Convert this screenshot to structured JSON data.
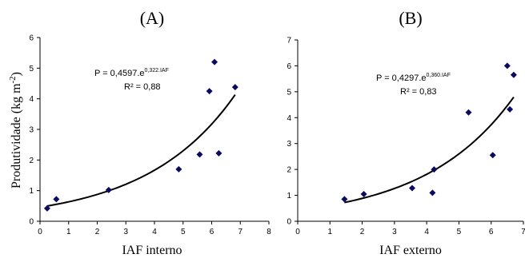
{
  "chart_data": [
    {
      "type": "scatter",
      "title": "(A)",
      "xlabel": "IAF interno",
      "ylabel": "Produtividade (kg m",
      "ylabel_sup": "-2",
      "ylabel_end": ")",
      "xlim": [
        0,
        8
      ],
      "ylim": [
        0,
        6
      ],
      "xticks": [
        0,
        1,
        2,
        3,
        4,
        5,
        6,
        7,
        8
      ],
      "yticks": [
        0,
        1,
        2,
        3,
        4,
        5,
        6
      ],
      "points": [
        {
          "x": 0.25,
          "y": 0.42
        },
        {
          "x": 0.57,
          "y": 0.72
        },
        {
          "x": 2.4,
          "y": 1.02
        },
        {
          "x": 4.85,
          "y": 1.7
        },
        {
          "x": 5.58,
          "y": 2.18
        },
        {
          "x": 5.92,
          "y": 4.25
        },
        {
          "x": 6.1,
          "y": 5.2
        },
        {
          "x": 6.25,
          "y": 2.22
        },
        {
          "x": 6.82,
          "y": 4.38
        }
      ],
      "fit": {
        "a": 0.4597,
        "b": 0.322,
        "xmin": 0.25,
        "xmax": 6.82
      },
      "equation": {
        "main": "P = 0,4597.e",
        "sup": "0,322.IAF",
        "r2": "R² = 0,88"
      }
    },
    {
      "type": "scatter",
      "title": "(B)",
      "xlabel": "IAF externo",
      "xlim": [
        0,
        7
      ],
      "ylim": [
        0,
        7
      ],
      "xticks": [
        0,
        1,
        2,
        3,
        4,
        5,
        6,
        7
      ],
      "yticks": [
        0,
        1,
        2,
        3,
        4,
        5,
        6,
        7
      ],
      "points": [
        {
          "x": 1.45,
          "y": 0.85
        },
        {
          "x": 2.05,
          "y": 1.05
        },
        {
          "x": 3.55,
          "y": 1.28
        },
        {
          "x": 4.18,
          "y": 1.1
        },
        {
          "x": 4.23,
          "y": 2.0
        },
        {
          "x": 5.3,
          "y": 4.2
        },
        {
          "x": 6.05,
          "y": 2.55
        },
        {
          "x": 6.5,
          "y": 6.0
        },
        {
          "x": 6.58,
          "y": 4.32
        },
        {
          "x": 6.7,
          "y": 5.65
        }
      ],
      "fit": {
        "a": 0.4297,
        "b": 0.36,
        "xmin": 1.45,
        "xmax": 6.7
      },
      "equation": {
        "main": "P = 0,4297.e",
        "sup": "0,360.IAF",
        "r2": "R² = 0,83"
      }
    }
  ]
}
